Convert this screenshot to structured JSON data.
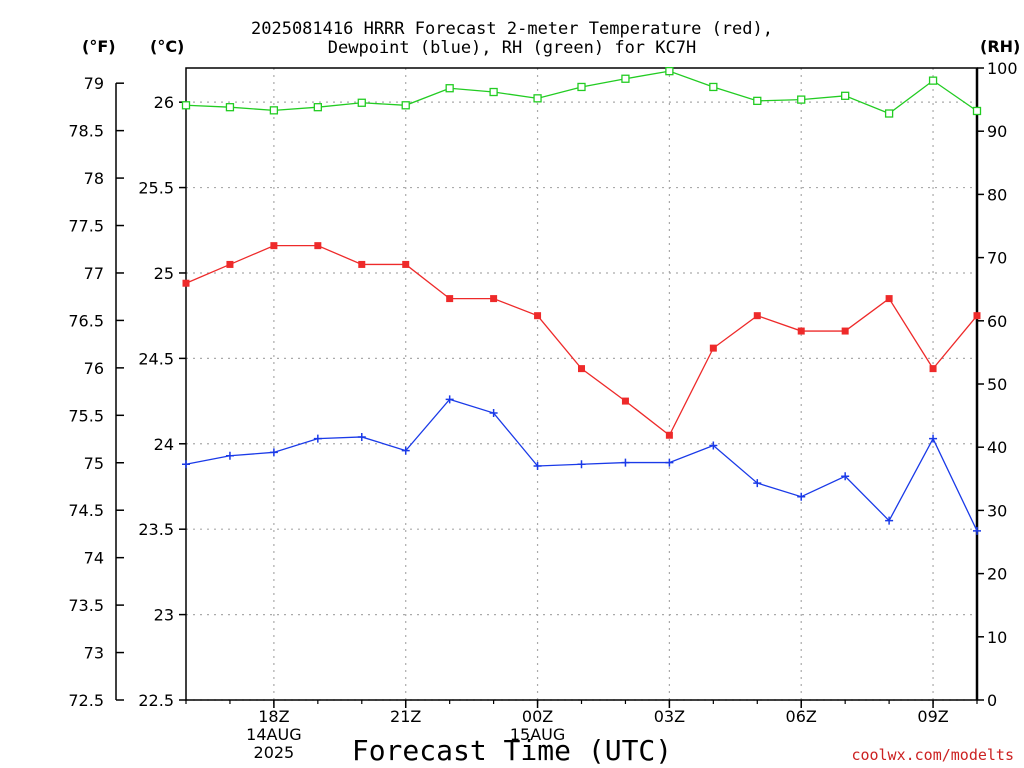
{
  "chart_data": {
    "type": "line",
    "title_line1": "2025081416 HRRR Forecast 2-meter Temperature (red),",
    "title_line2": "Dewpoint (blue), RH (green) for KC7H",
    "unit_f": "(°F)",
    "unit_c": "(°C)",
    "unit_rh": "(RH)",
    "xlabel": "Forecast Time (UTC)",
    "credit": "coolwx.com/modelts",
    "grid": true,
    "x": [
      16,
      17,
      18,
      19,
      20,
      21,
      22,
      23,
      24,
      25,
      26,
      27,
      28,
      29,
      30,
      31,
      32,
      33,
      34
    ],
    "xlim": [
      16,
      34
    ],
    "x_ticks": [
      {
        "x": 18,
        "lines": [
          "18Z",
          "14AUG",
          "2025"
        ]
      },
      {
        "x": 21,
        "lines": [
          "21Z"
        ]
      },
      {
        "x": 24,
        "lines": [
          "00Z",
          "15AUG"
        ]
      },
      {
        "x": 27,
        "lines": [
          "03Z"
        ]
      },
      {
        "x": 30,
        "lines": [
          "06Z"
        ]
      },
      {
        "x": 33,
        "lines": [
          "09Z"
        ]
      }
    ],
    "y_c_ticks": [
      "22.5",
      "23",
      "23.5",
      "24",
      "24.5",
      "25",
      "25.5",
      "26"
    ],
    "y_c_lim": [
      22.5,
      26.2
    ],
    "y_f_ticks": [
      "72.5",
      "73",
      "73.5",
      "74",
      "74.5",
      "75",
      "75.5",
      "76",
      "76.5",
      "77",
      "77.5",
      "78",
      "78.5",
      "79"
    ],
    "y_rh_ticks": [
      "0",
      "10",
      "20",
      "30",
      "40",
      "50",
      "60",
      "70",
      "80",
      "90",
      "100"
    ],
    "y_rh_lim": [
      0,
      100
    ],
    "series": [
      {
        "name": "Temperature",
        "axis": "C",
        "color": "#ee2a2a",
        "marker": "filled-square",
        "values": [
          24.94,
          25.05,
          25.16,
          25.16,
          25.05,
          25.05,
          24.85,
          24.85,
          24.75,
          24.44,
          24.25,
          24.05,
          24.56,
          24.75,
          24.66,
          24.66,
          24.85,
          24.44,
          24.75
        ]
      },
      {
        "name": "Dewpoint",
        "axis": "C",
        "color": "#1a3ae8",
        "marker": "plus",
        "values": [
          23.88,
          23.93,
          23.95,
          24.03,
          24.04,
          23.96,
          24.26,
          24.18,
          23.87,
          23.88,
          23.89,
          23.89,
          23.99,
          23.77,
          23.69,
          23.81,
          23.55,
          24.03,
          23.49
        ]
      },
      {
        "name": "RH",
        "axis": "RH",
        "color": "#22cc22",
        "marker": "open-square",
        "values": [
          94.1,
          93.8,
          93.3,
          93.8,
          94.5,
          94.1,
          96.8,
          96.2,
          95.2,
          97.0,
          98.3,
          99.5,
          97.0,
          94.8,
          95.0,
          95.6,
          92.8,
          98.0,
          93.2
        ]
      }
    ]
  }
}
